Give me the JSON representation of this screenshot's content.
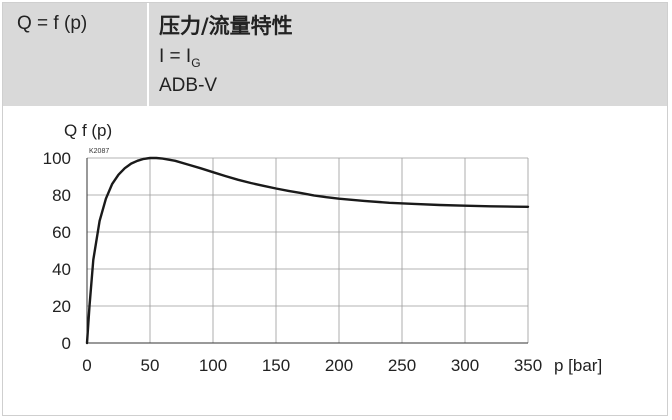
{
  "header": {
    "formula": "Q = f (p)",
    "title": "压力/流量特性",
    "current_main": "I = I",
    "current_sub": "G",
    "model": "ADB-V"
  },
  "chart_data": {
    "type": "line",
    "ylabel": "Q f (p)",
    "xlabel": "p [bar]",
    "code": "K2087",
    "xlim": [
      0,
      350
    ],
    "ylim": [
      0,
      100
    ],
    "xticks": [
      0,
      50,
      100,
      150,
      200,
      250,
      300,
      350
    ],
    "yticks": [
      0,
      20,
      40,
      60,
      80,
      100
    ],
    "grid": true,
    "series": [
      {
        "x": [
          0,
          2,
          5,
          10,
          15,
          20,
          25,
          30,
          35,
          40,
          45,
          50,
          55,
          60,
          70,
          80,
          90,
          100,
          110,
          120,
          130,
          140,
          150,
          160,
          170,
          180,
          190,
          200,
          220,
          240,
          260,
          280,
          300,
          320,
          340,
          350
        ],
        "y": [
          0,
          20,
          45,
          66,
          78,
          86,
          91,
          94.5,
          97,
          98.5,
          99.5,
          100,
          100,
          99.7,
          98.5,
          96.5,
          94.5,
          92.3,
          90.2,
          88.2,
          86.5,
          85,
          83.5,
          82.2,
          81,
          79.8,
          78.8,
          78,
          76.8,
          75.8,
          75.2,
          74.6,
          74.2,
          73.9,
          73.7,
          73.6
        ]
      }
    ]
  },
  "colors": {
    "header_bg": "#d9d9d9",
    "curve": "#1a1a1a",
    "grid": "#9a9a9a"
  }
}
